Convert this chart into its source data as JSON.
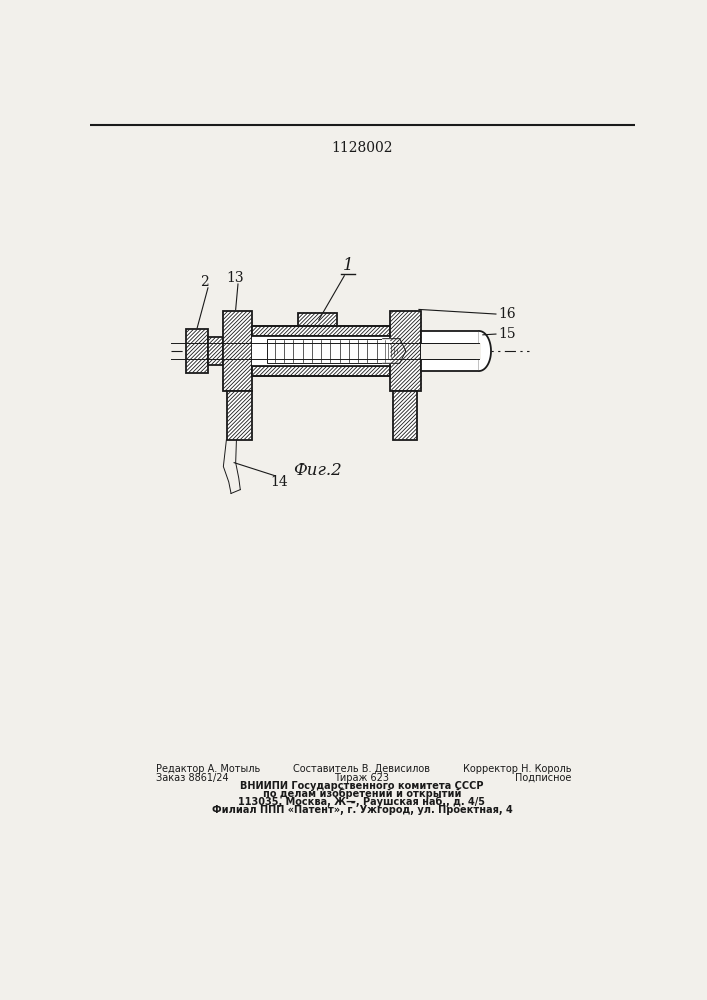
{
  "patent_number": "1128002",
  "fig_caption": "Фиг.2",
  "label_1": "1",
  "label_2": "2",
  "label_13": "13",
  "label_14": "14",
  "label_15": "15",
  "label_16": "16",
  "footer_line1_left": "Редактор А. Мотыль",
  "footer_line1_center": "Составитель В. Девисилов",
  "footer_line1_right": "Корректор Н. Король",
  "footer_line2_left": "Заказ 8861/24",
  "footer_line2_center": "Тираж 623",
  "footer_line2_right": "Подписное",
  "footer_line3": "ВНИИПИ Государственного комитета СССР",
  "footer_line4": "по делам изобретений и открытий",
  "footer_line5": "113035, Москва, Ж—̵, Раушская наб., д. 4/5",
  "footer_line6": "Филиал ППП «Патент», г. Ужгород, ул. Проектная, 4",
  "bg_color": "#f2f0eb",
  "line_color": "#1a1a1a"
}
